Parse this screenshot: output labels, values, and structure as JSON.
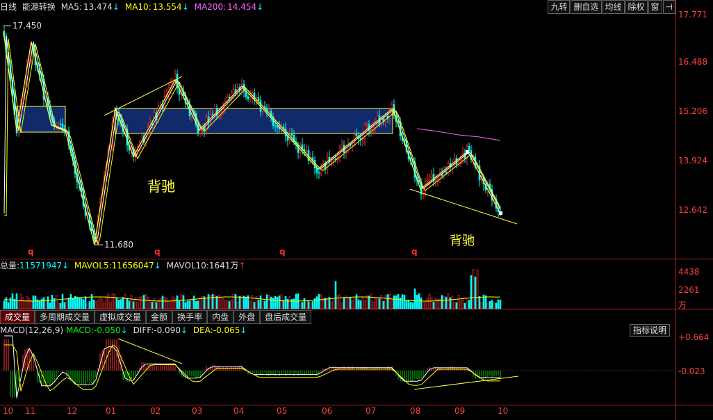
{
  "header": {
    "period": "日线",
    "stock": "能源转换",
    "ma5_label": "MA5:",
    "ma5_value": "13.474",
    "ma10_label": "MA10:",
    "ma10_value": "13.554",
    "ma200_label": "MA200:",
    "ma200_value": "14.454",
    "down_arrow": "↓",
    "up_arrow": "↑"
  },
  "toolbar": {
    "buttons": [
      "九转",
      "删自选",
      "均线",
      "除权",
      "窗"
    ],
    "pin": "⊣"
  },
  "price_axis": [
    "17.771",
    "16.488",
    "15.206",
    "13.924",
    "12.642"
  ],
  "annotations": {
    "high": "17.450",
    "low": "11.680",
    "divergence1": "背驰",
    "divergence2": "背驰",
    "q": "q"
  },
  "volume": {
    "total_label": "总量:",
    "total_value": "11571947",
    "mavol5_label": "MAVOL5:",
    "mavol5_value": "11656047",
    "mavol10_label": "MAVOL10:",
    "mavol10_value": "1641万",
    "axis": [
      "4438",
      "2261",
      "万"
    ]
  },
  "tabs": [
    "成交量",
    "多周期成交量",
    "虚拟成交量",
    "金额",
    "换手率",
    "内盘",
    "外盘",
    "盘后成交量"
  ],
  "macd": {
    "title": "MACD(12,26,9)",
    "macd_label": "MACD:",
    "macd_value": "-0.050",
    "diff_label": "DIFF:",
    "diff_value": "-0.090",
    "dea_label": "DEA:",
    "dea_value": "-0.065",
    "axis": [
      "+0.664",
      "-0.023"
    ],
    "explain_button": "指标说明"
  },
  "x_axis": [
    "10",
    "11",
    "12",
    "01",
    "02",
    "03",
    "04",
    "05",
    "06",
    "07",
    "08",
    "09",
    "10"
  ],
  "colors": {
    "axis": "#aa2222",
    "ma5": "#ffffff",
    "ma10": "#ffff00",
    "ma200": "#ff66ff",
    "up": "#ff3333",
    "down": "#00ffff",
    "zone": "#102a6a"
  }
}
